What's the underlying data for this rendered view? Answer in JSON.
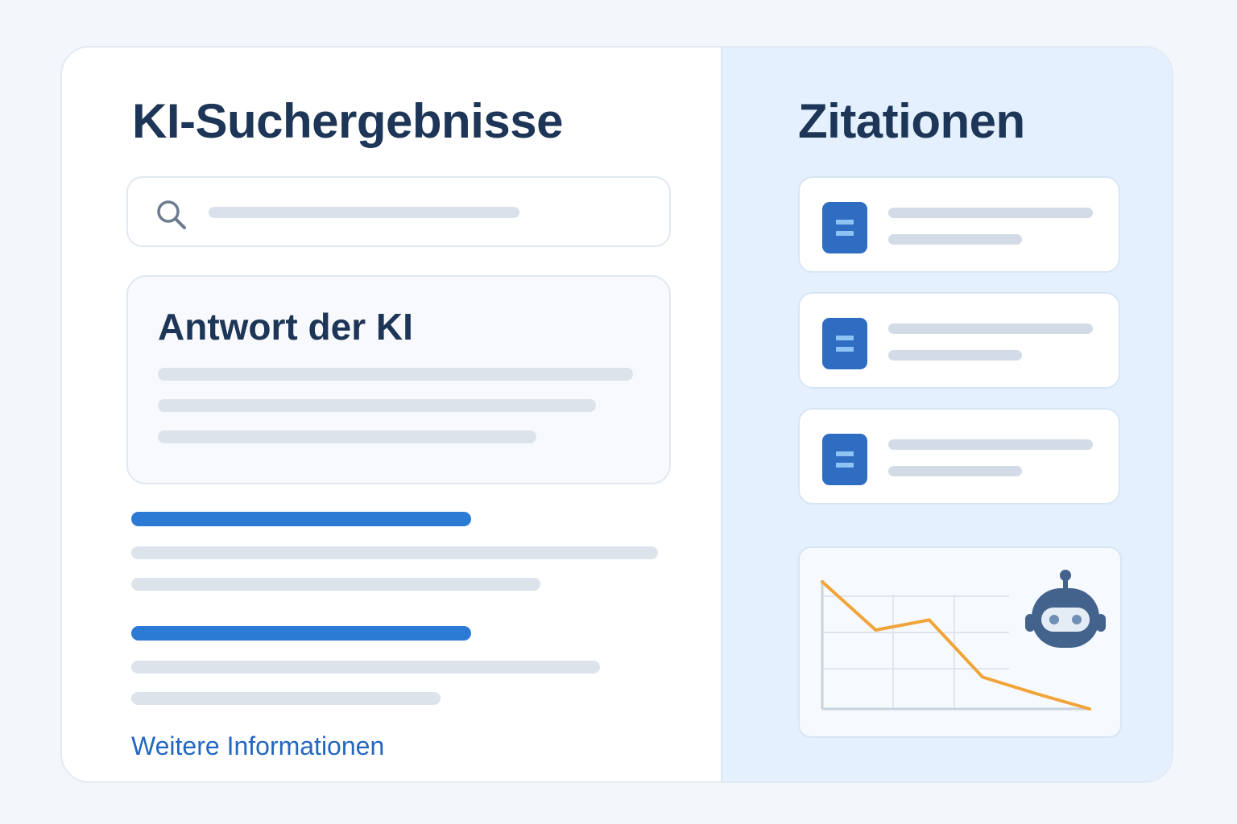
{
  "left": {
    "title": "KI-Suchergebnisse",
    "search": {
      "icon": "search-icon",
      "value": ""
    },
    "answer": {
      "title": "Antwort der KI"
    },
    "more_link": "Weitere Informationen"
  },
  "right": {
    "title": "Zitationen",
    "citations": [
      {
        "icon": "document-icon"
      },
      {
        "icon": "document-icon"
      },
      {
        "icon": "document-icon"
      }
    ],
    "chart": {
      "icon": "robot-icon"
    }
  },
  "chart_data": {
    "type": "line",
    "x": [
      0,
      1,
      2,
      3,
      4,
      5
    ],
    "values": [
      100,
      62,
      70,
      25,
      12,
      0
    ],
    "ylim": [
      0,
      100
    ],
    "xlim": [
      0,
      5
    ],
    "grid": true,
    "title": "",
    "xlabel": "",
    "ylabel": ""
  },
  "colors": {
    "accent": "#2b7bd4",
    "title": "#1d3657",
    "line": "#f0a43a",
    "icon": "#2e6dc2",
    "robot": "#44638c"
  }
}
